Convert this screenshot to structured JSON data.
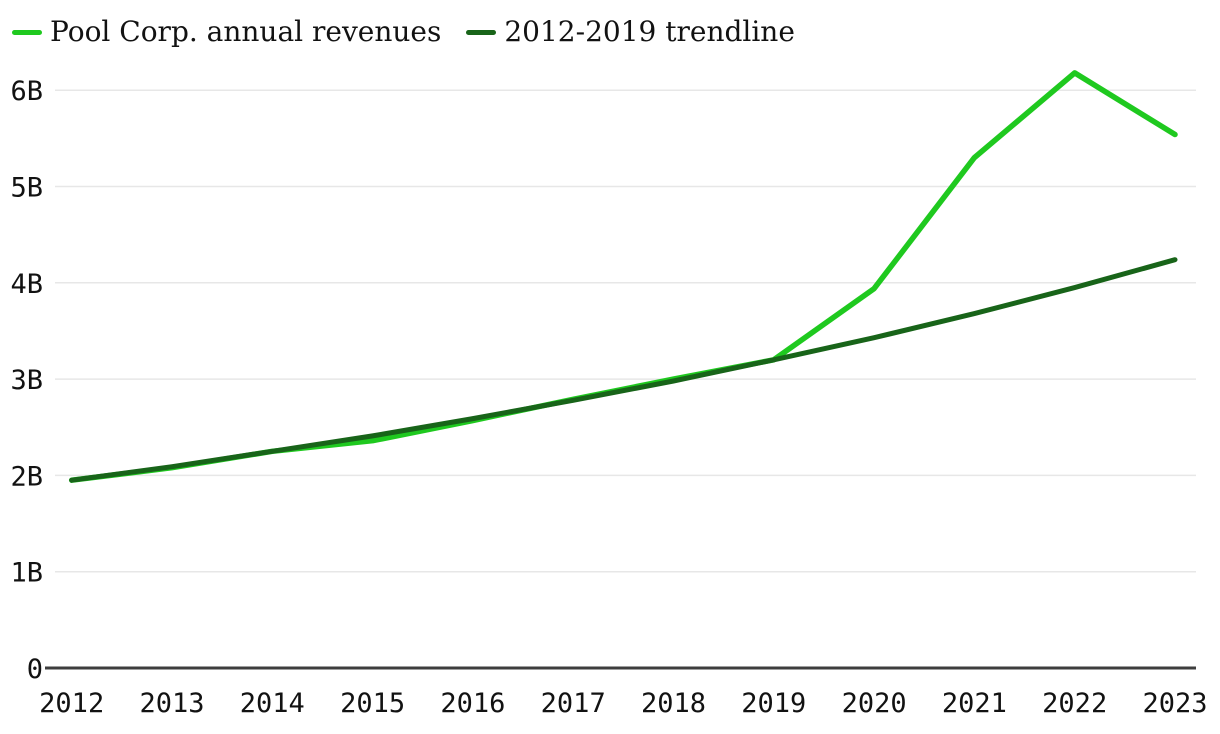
{
  "chart": {
    "background": "#ffffff",
    "grid_color": "#e7e7e7",
    "axis_color": "#3e3e3e",
    "text_color": "#121212"
  },
  "chart_data": {
    "type": "line",
    "title": "",
    "xlabel": "",
    "ylabel": "",
    "x": [
      2012,
      2013,
      2014,
      2015,
      2016,
      2017,
      2018,
      2019,
      2020,
      2021,
      2022,
      2023
    ],
    "xtick_labels": [
      "2012",
      "2013",
      "2014",
      "2015",
      "2016",
      "2017",
      "2018",
      "2019",
      "2020",
      "2021",
      "2022",
      "2023"
    ],
    "yticks": [
      {
        "value": 0,
        "label": "0"
      },
      {
        "value": 1,
        "label": "1B"
      },
      {
        "value": 2,
        "label": "2B"
      },
      {
        "value": 3,
        "label": "3B"
      },
      {
        "value": 4,
        "label": "4B"
      },
      {
        "value": 5,
        "label": "5B"
      },
      {
        "value": 6,
        "label": "6B"
      }
    ],
    "ylim": [
      0,
      6.5
    ],
    "grid": "horizontal",
    "legend_position": "top-left",
    "series": [
      {
        "name": "Pool Corp. annual revenues",
        "color": "#1fc91f",
        "stroke_width": 5.5,
        "values": [
          1.95,
          2.08,
          2.25,
          2.36,
          2.57,
          2.79,
          3.0,
          3.2,
          3.94,
          5.3,
          6.18,
          5.54
        ]
      },
      {
        "name": "2012-2019 trendline",
        "color": "#186419",
        "stroke_width": 5,
        "values": [
          1.95,
          2.09,
          2.25,
          2.41,
          2.59,
          2.78,
          2.98,
          3.2,
          3.43,
          3.68,
          3.95,
          4.24
        ]
      }
    ]
  }
}
